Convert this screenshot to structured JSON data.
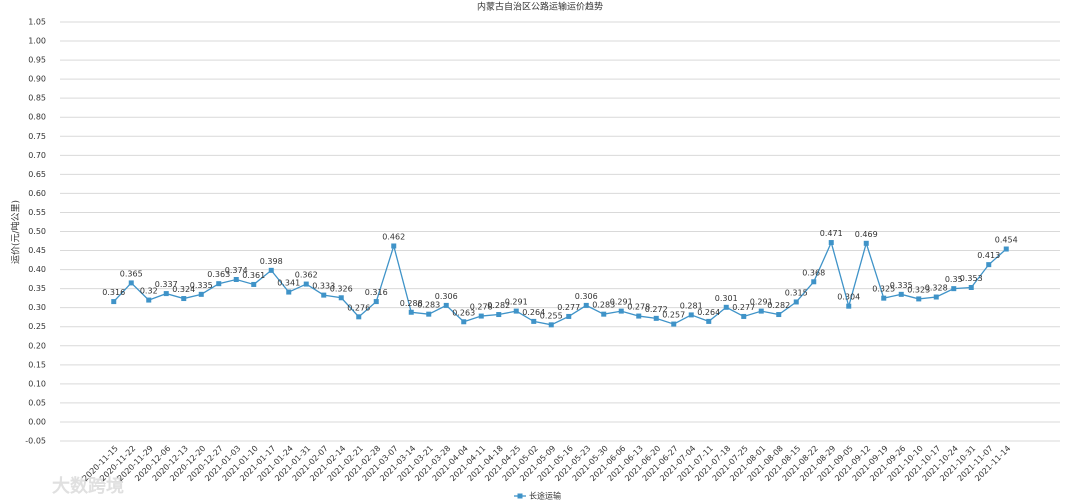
{
  "chart_data": {
    "type": "line",
    "title": "内蒙古自治区公路运输运价趋势",
    "y_label": "运价(元/吨公里)",
    "watermark": "大数跨境",
    "categories": [
      "2020-11-15",
      "2020-11-22",
      "2020-11-29",
      "2020-12-06",
      "2020-12-13",
      "2020-12-20",
      "2020-12-27",
      "2021-01-03",
      "2021-01-10",
      "2021-01-17",
      "2021-01-24",
      "2021-01-31",
      "2021-02-07",
      "2021-02-14",
      "2021-02-21",
      "2021-02-28",
      "2021-03-07",
      "2021-03-14",
      "2021-03-21",
      "2021-03-28",
      "2021-04-04",
      "2021-04-11",
      "2021-04-18",
      "2021-04-25",
      "2021-05-02",
      "2021-05-09",
      "2021-05-16",
      "2021-05-23",
      "2021-05-30",
      "2021-06-06",
      "2021-06-13",
      "2021-06-20",
      "2021-06-27",
      "2021-07-04",
      "2021-07-11",
      "2021-07-18",
      "2021-07-25",
      "2021-08-01",
      "2021-08-08",
      "2021-08-15",
      "2021-08-22",
      "2021-08-29",
      "2021-09-05",
      "2021-09-12",
      "2021-09-19",
      "2021-09-26",
      "2021-10-10",
      "2021-10-17",
      "2021-10-24",
      "2021-10-31",
      "2021-11-07",
      "2021-11-14"
    ],
    "series": [
      {
        "name": "长途运输",
        "color": "#3f93c8",
        "values": [
          0.316,
          0.365,
          0.32,
          0.337,
          0.324,
          0.335,
          0.363,
          0.374,
          0.361,
          0.398,
          0.341,
          0.362,
          0.333,
          0.326,
          0.276,
          0.316,
          0.462,
          0.288,
          0.283,
          0.306,
          0.263,
          0.278,
          0.282,
          0.291,
          0.264,
          0.255,
          0.277,
          0.306,
          0.283,
          0.291,
          0.278,
          0.272,
          0.257,
          0.281,
          0.264,
          0.301,
          0.277,
          0.291,
          0.282,
          0.315,
          0.368,
          0.471,
          0.304,
          0.469,
          0.325,
          0.335,
          0.323,
          0.328,
          0.35,
          0.353,
          0.413,
          0.454
        ]
      }
    ],
    "ylim": [
      -0.05,
      1.05
    ],
    "yticks": [
      -0.05,
      {
        "value": 0,
        "label": "0.00"
      },
      0.05,
      {
        "value": 0.1,
        "label": "0.10"
      },
      0.15,
      {
        "value": 0.2,
        "label": "0.20"
      },
      0.25,
      {
        "value": 0.3,
        "label": "0.30"
      },
      0.35,
      {
        "value": 0.4,
        "label": "0.40"
      },
      0.45,
      {
        "value": 0.5,
        "label": "0.50"
      },
      0.55,
      {
        "value": 0.6,
        "label": "0.60"
      },
      0.65,
      {
        "value": 0.7,
        "label": "0.70"
      },
      0.75,
      {
        "value": 0.8,
        "label": "0.80"
      },
      0.85,
      {
        "value": 0.9,
        "label": "0.90"
      },
      0.95,
      {
        "value": 1,
        "label": "1.00"
      },
      1.05
    ],
    "grid": true,
    "legend": "bottom"
  }
}
